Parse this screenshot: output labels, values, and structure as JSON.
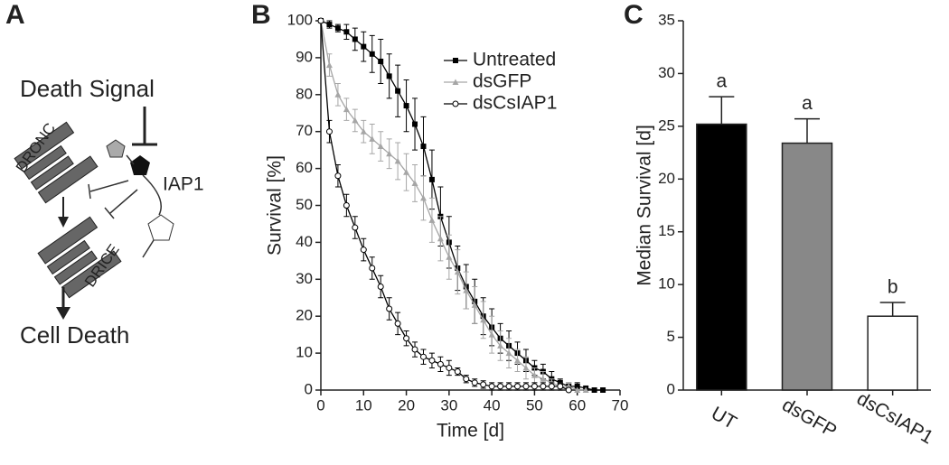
{
  "diagram": {
    "panel_label": "A",
    "signal": "Death Signal",
    "initiator": "DRONC",
    "inhibitor": "IAP1",
    "effector": "DRICE",
    "outcome": "Cell Death"
  },
  "chart_data": [
    {
      "type": "line",
      "panel_label": "B",
      "xlabel": "Time [d]",
      "ylabel": "Survival [%]",
      "xlim": [
        0,
        70
      ],
      "xticks": [
        0,
        10,
        20,
        30,
        40,
        50,
        60,
        70
      ],
      "ylim": [
        0,
        100
      ],
      "yticks": [
        0,
        10,
        20,
        30,
        40,
        50,
        60,
        70,
        80,
        90,
        100
      ],
      "legend": "upper right",
      "x": [
        0,
        2,
        4,
        6,
        8,
        10,
        12,
        14,
        16,
        18,
        20,
        22,
        24,
        26,
        28,
        30,
        32,
        34,
        36,
        38,
        40,
        42,
        44,
        46,
        48,
        50,
        52,
        54,
        56,
        58,
        60,
        62,
        64,
        66
      ],
      "series": [
        {
          "name": "Untreated",
          "color": "#000000",
          "marker": "square",
          "values": [
            100,
            99,
            98,
            97,
            95,
            93,
            91,
            89,
            85,
            81,
            77,
            72,
            66,
            57,
            47,
            40,
            33,
            28,
            24,
            20,
            17,
            14,
            12,
            10,
            8,
            6,
            5,
            3,
            2,
            1,
            1,
            0.5,
            0,
            0
          ],
          "errors": [
            0,
            1,
            1,
            2,
            3,
            4,
            5,
            6,
            6,
            7,
            7,
            7,
            8,
            8,
            8,
            7,
            6,
            6,
            6,
            5,
            5,
            4,
            4,
            3,
            3,
            2,
            2,
            2,
            1,
            1,
            1,
            0,
            0,
            0
          ]
        },
        {
          "name": "dsGFP",
          "color": "#a6a6a6",
          "marker": "triangle",
          "values": [
            100,
            88,
            80,
            76,
            73,
            70,
            68,
            66,
            64,
            62,
            59,
            56,
            52,
            46,
            41,
            36,
            32,
            27,
            23,
            19,
            15,
            12,
            10,
            8,
            6,
            4,
            3,
            2,
            1,
            1,
            0,
            0,
            null,
            null
          ],
          "errors": [
            0,
            3,
            3,
            3,
            3,
            3,
            4,
            4,
            4,
            5,
            5,
            5,
            6,
            6,
            6,
            6,
            6,
            5,
            5,
            5,
            5,
            4,
            4,
            3,
            3,
            2,
            2,
            1,
            1,
            1,
            0,
            0,
            null,
            null
          ]
        },
        {
          "name": "dsCsIAP1",
          "color": "#000000",
          "marker": "circle",
          "values": [
            100,
            70,
            58,
            50,
            44,
            38,
            33,
            28,
            22,
            18,
            14,
            11,
            9,
            8,
            7,
            6,
            5,
            3,
            2,
            1.5,
            1,
            1,
            1,
            1,
            1,
            1,
            1,
            1,
            1,
            0,
            null,
            null,
            null,
            null
          ],
          "errors": [
            0,
            3,
            3,
            3,
            3,
            3,
            3,
            3,
            3,
            3,
            2,
            2,
            2,
            2,
            2,
            2,
            1,
            1,
            1,
            1,
            1,
            1,
            1,
            1,
            1,
            1,
            1,
            1,
            1,
            0,
            null,
            null,
            null,
            null
          ]
        }
      ]
    },
    {
      "type": "bar",
      "panel_label": "C",
      "ylabel": "Median Survival [d]",
      "ylim": [
        0,
        35
      ],
      "yticks": [
        0,
        5,
        10,
        15,
        20,
        25,
        30,
        35
      ],
      "categories": [
        "UT",
        "dsGFP",
        "dsCsIAP1"
      ],
      "values": [
        25.2,
        23.4,
        7.0
      ],
      "errors": [
        2.6,
        2.3,
        1.3
      ],
      "colors": [
        "#000000",
        "#888888",
        "#ffffff"
      ],
      "annotations": [
        "a",
        "a",
        "b"
      ]
    }
  ]
}
